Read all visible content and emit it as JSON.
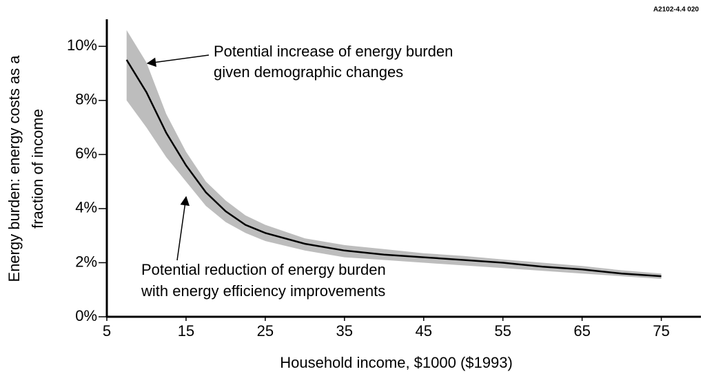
{
  "chart_data": {
    "type": "line",
    "code": "A2102-4.4 020",
    "xlabel": "Household income, $1000 ($1993)",
    "ylabel": [
      "Energy burden: energy costs as a",
      "fraction of income"
    ],
    "annotations": [
      [
        "Potential increase of energy burden",
        "given demographic changes"
      ],
      [
        "Potential reduction of energy burden",
        "with energy efficiency improvements"
      ]
    ],
    "x": [
      7.5,
      10,
      12.5,
      15,
      17.5,
      20,
      22.5,
      25,
      30,
      35,
      40,
      45,
      50,
      55,
      60,
      65,
      70,
      75
    ],
    "values": [
      9.5,
      8.3,
      6.8,
      5.6,
      4.6,
      3.9,
      3.4,
      3.1,
      2.7,
      2.45,
      2.3,
      2.2,
      2.1,
      2.0,
      1.85,
      1.75,
      1.6,
      1.5
    ],
    "upper": [
      10.6,
      9.4,
      7.5,
      6.1,
      5.0,
      4.3,
      3.75,
      3.4,
      2.9,
      2.65,
      2.5,
      2.35,
      2.25,
      2.12,
      2.0,
      1.88,
      1.72,
      1.6
    ],
    "lower": [
      8.0,
      7.0,
      5.9,
      5.0,
      4.1,
      3.5,
      3.1,
      2.8,
      2.45,
      2.2,
      2.1,
      2.0,
      1.9,
      1.8,
      1.7,
      1.6,
      1.5,
      1.4
    ],
    "color": "#000000",
    "band_color": "#bdbdbd",
    "xlim": [
      5,
      80
    ],
    "ylim": [
      0,
      11
    ],
    "xticks": [
      5,
      15,
      25,
      35,
      45,
      55,
      65,
      75
    ],
    "yticks": [
      {
        "value": 0,
        "label": "0%"
      },
      {
        "value": 2,
        "label": "2%"
      },
      {
        "value": 4,
        "label": "4%"
      },
      {
        "value": 6,
        "label": "6%"
      },
      {
        "value": 8,
        "label": "8%"
      },
      {
        "value": 10,
        "label": "10%"
      }
    ]
  }
}
